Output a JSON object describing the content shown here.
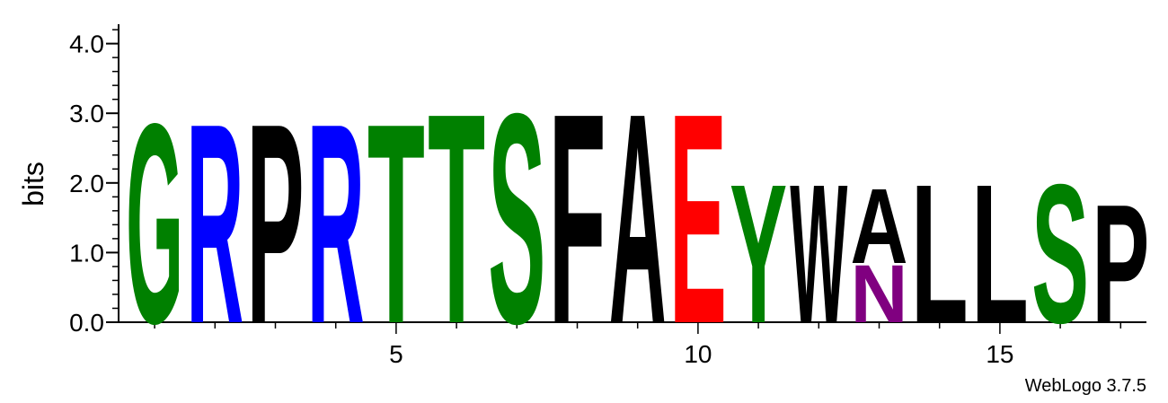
{
  "chart_data": {
    "type": "sequence-logo",
    "ylabel": "bits",
    "ylim": [
      0,
      4.3
    ],
    "yticks": [
      "0.0",
      "1.0",
      "2.0",
      "3.0",
      "4.0"
    ],
    "xticks": [
      5,
      10,
      15
    ],
    "footer": "WebLogo 3.7.5",
    "positions": [
      {
        "pos": 1,
        "stack": [
          {
            "letter": "G",
            "color": "green",
            "bits": 2.95
          }
        ]
      },
      {
        "pos": 2,
        "stack": [
          {
            "letter": "R",
            "color": "blue",
            "bits": 2.95
          }
        ]
      },
      {
        "pos": 3,
        "stack": [
          {
            "letter": "P",
            "color": "black",
            "bits": 2.95
          }
        ]
      },
      {
        "pos": 4,
        "stack": [
          {
            "letter": "R",
            "color": "blue",
            "bits": 2.95
          }
        ]
      },
      {
        "pos": 5,
        "stack": [
          {
            "letter": "T",
            "color": "green",
            "bits": 2.95
          }
        ]
      },
      {
        "pos": 6,
        "stack": [
          {
            "letter": "T",
            "color": "green",
            "bits": 3.1
          }
        ]
      },
      {
        "pos": 7,
        "stack": [
          {
            "letter": "S",
            "color": "green",
            "bits": 3.1
          }
        ]
      },
      {
        "pos": 8,
        "stack": [
          {
            "letter": "F",
            "color": "black",
            "bits": 3.1
          }
        ]
      },
      {
        "pos": 9,
        "stack": [
          {
            "letter": "A",
            "color": "black",
            "bits": 3.1
          }
        ]
      },
      {
        "pos": 10,
        "stack": [
          {
            "letter": "E",
            "color": "red",
            "bits": 3.1
          }
        ]
      },
      {
        "pos": 11,
        "stack": [
          {
            "letter": "Y",
            "color": "green",
            "bits": 2.05
          }
        ]
      },
      {
        "pos": 12,
        "stack": [
          {
            "letter": "W",
            "color": "black",
            "bits": 2.05
          }
        ]
      },
      {
        "pos": 13,
        "stack": [
          {
            "letter": "N",
            "color": "purple",
            "bits": 0.85
          },
          {
            "letter": "A",
            "color": "black",
            "bits": 1.1
          }
        ]
      },
      {
        "pos": 14,
        "stack": [
          {
            "letter": "L",
            "color": "black",
            "bits": 2.05
          }
        ]
      },
      {
        "pos": 15,
        "stack": [
          {
            "letter": "L",
            "color": "black",
            "bits": 2.05
          }
        ]
      },
      {
        "pos": 16,
        "stack": [
          {
            "letter": "S",
            "color": "green",
            "bits": 2.05
          }
        ]
      },
      {
        "pos": 17,
        "stack": [
          {
            "letter": "P",
            "color": "black",
            "bits": 1.75
          }
        ]
      }
    ],
    "colors": {
      "green": "#008000",
      "blue": "#0000ff",
      "black": "#000000",
      "red": "#ff0000",
      "purple": "#800080"
    }
  }
}
